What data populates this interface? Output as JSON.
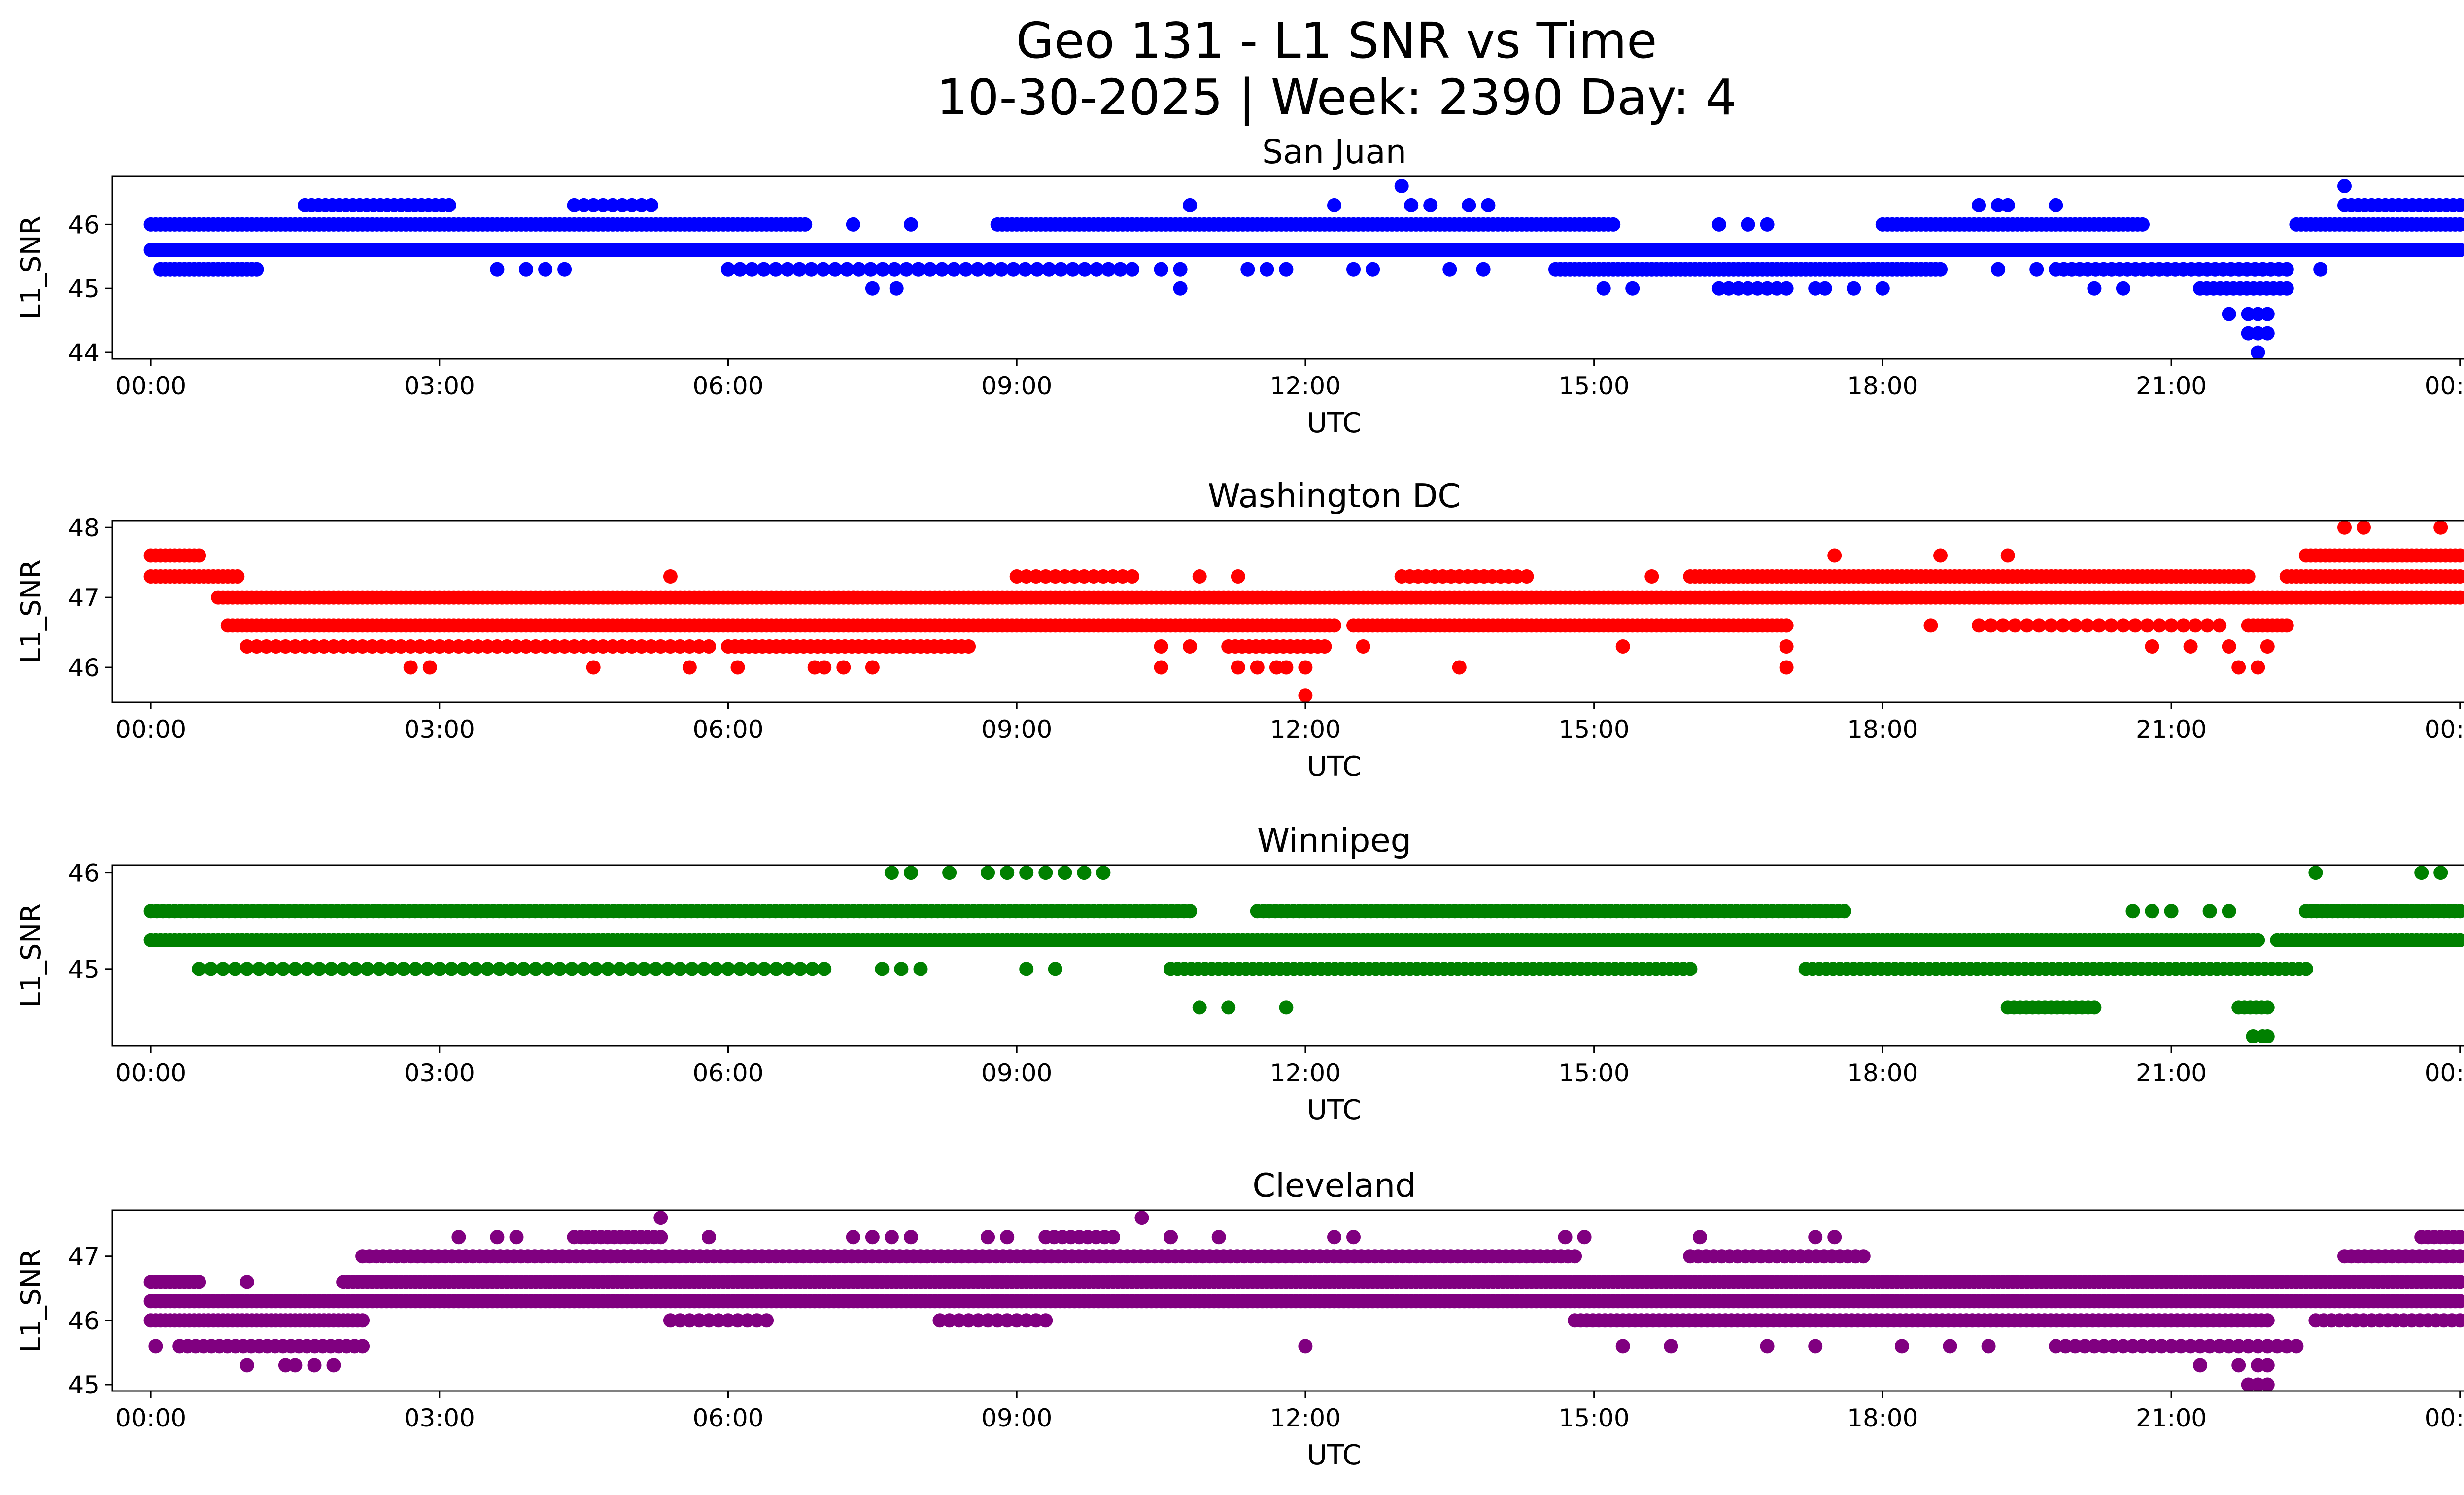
{
  "figure": {
    "title_line1": "Geo 131 - L1 SNR vs Time",
    "title_line2": "10-30-2025 | Week: 2390 Day: 4"
  },
  "chart_data": [
    {
      "type": "scatter",
      "title": "San Juan",
      "xlabel": "UTC",
      "ylabel": "L1_SNR",
      "color": "#0000ff",
      "xlim": [
        -0.4,
        25.0
      ],
      "ylim": [
        43.9,
        46.75
      ],
      "xticks": [
        0,
        3,
        6,
        9,
        12,
        15,
        18,
        21,
        24
      ],
      "xtick_labels": [
        "00:00",
        "03:00",
        "06:00",
        "09:00",
        "12:00",
        "15:00",
        "18:00",
        "21:00",
        "00:00"
      ],
      "yticks": [
        44,
        45,
        46
      ],
      "ytick_labels": [
        "44",
        "45",
        "46"
      ],
      "bands": [
        {
          "y": 45.6,
          "start": 0,
          "end": 24,
          "density": 20
        },
        {
          "y": 46.0,
          "start": 0,
          "end": 6.8,
          "density": 20
        },
        {
          "y": 46.0,
          "start": 8.8,
          "end": 15.2,
          "density": 20
        },
        {
          "y": 46.0,
          "start": 18.0,
          "end": 20.7,
          "density": 20
        },
        {
          "y": 46.0,
          "start": 22.3,
          "end": 24,
          "density": 20
        },
        {
          "y": 45.3,
          "start": 0.1,
          "end": 1.1,
          "density": 20
        },
        {
          "y": 45.3,
          "start": 6.0,
          "end": 10.2,
          "density": 8
        },
        {
          "y": 45.3,
          "start": 14.6,
          "end": 18.6,
          "density": 20
        },
        {
          "y": 45.3,
          "start": 19.8,
          "end": 22.2,
          "density": 12
        },
        {
          "y": 46.3,
          "start": 1.6,
          "end": 3.1,
          "density": 14
        },
        {
          "y": 46.3,
          "start": 4.4,
          "end": 5.2,
          "density": 10
        },
        {
          "y": 46.3,
          "start": 22.8,
          "end": 24,
          "density": 14
        },
        {
          "y": 45.0,
          "start": 16.3,
          "end": 17.0,
          "density": 10
        },
        {
          "y": 45.0,
          "start": 21.3,
          "end": 22.2,
          "density": 14
        }
      ],
      "points": [
        {
          "x": 7.3,
          "y": 46.0
        },
        {
          "x": 7.9,
          "y": 46.0
        },
        {
          "x": 7.5,
          "y": 45.0
        },
        {
          "x": 7.75,
          "y": 45.0
        },
        {
          "x": 3.6,
          "y": 45.3
        },
        {
          "x": 3.9,
          "y": 45.3
        },
        {
          "x": 4.1,
          "y": 45.3
        },
        {
          "x": 4.3,
          "y": 45.3
        },
        {
          "x": 10.8,
          "y": 46.3
        },
        {
          "x": 10.5,
          "y": 45.3
        },
        {
          "x": 10.7,
          "y": 45.3
        },
        {
          "x": 10.7,
          "y": 45.0
        },
        {
          "x": 11.4,
          "y": 45.3
        },
        {
          "x": 11.6,
          "y": 45.3
        },
        {
          "x": 11.8,
          "y": 45.3
        },
        {
          "x": 12.3,
          "y": 46.3
        },
        {
          "x": 12.5,
          "y": 45.3
        },
        {
          "x": 12.7,
          "y": 45.3
        },
        {
          "x": 13.0,
          "y": 46.6
        },
        {
          "x": 13.1,
          "y": 46.3
        },
        {
          "x": 13.3,
          "y": 46.3
        },
        {
          "x": 13.5,
          "y": 45.3
        },
        {
          "x": 13.7,
          "y": 46.3
        },
        {
          "x": 13.9,
          "y": 46.3
        },
        {
          "x": 13.85,
          "y": 45.3
        },
        {
          "x": 15.1,
          "y": 45.0
        },
        {
          "x": 15.4,
          "y": 45.0
        },
        {
          "x": 16.3,
          "y": 46.0
        },
        {
          "x": 16.6,
          "y": 46.0
        },
        {
          "x": 16.8,
          "y": 46.0
        },
        {
          "x": 17.3,
          "y": 45.0
        },
        {
          "x": 17.4,
          "y": 45.0
        },
        {
          "x": 17.7,
          "y": 45.0
        },
        {
          "x": 18.0,
          "y": 45.0
        },
        {
          "x": 19.0,
          "y": 46.3
        },
        {
          "x": 19.2,
          "y": 46.3
        },
        {
          "x": 19.3,
          "y": 46.3
        },
        {
          "x": 19.8,
          "y": 46.3
        },
        {
          "x": 19.2,
          "y": 45.3
        },
        {
          "x": 19.6,
          "y": 45.3
        },
        {
          "x": 20.2,
          "y": 45.0
        },
        {
          "x": 20.5,
          "y": 45.0
        },
        {
          "x": 21.6,
          "y": 44.6
        },
        {
          "x": 21.8,
          "y": 44.6
        },
        {
          "x": 22.0,
          "y": 44.6
        },
        {
          "x": 21.9,
          "y": 44.6
        },
        {
          "x": 21.8,
          "y": 44.3
        },
        {
          "x": 21.9,
          "y": 44.3
        },
        {
          "x": 22.0,
          "y": 44.3
        },
        {
          "x": 21.9,
          "y": 44.0
        },
        {
          "x": 22.55,
          "y": 45.3
        },
        {
          "x": 22.8,
          "y": 46.6
        }
      ]
    },
    {
      "type": "scatter",
      "title": "Washington DC",
      "xlabel": "UTC",
      "ylabel": "L1_SNR",
      "color": "#ff0000",
      "xlim": [
        -0.4,
        25.0
      ],
      "ylim": [
        45.5,
        48.1
      ],
      "xticks": [
        0,
        3,
        6,
        9,
        12,
        15,
        18,
        21,
        24
      ],
      "xtick_labels": [
        "00:00",
        "03:00",
        "06:00",
        "09:00",
        "12:00",
        "15:00",
        "18:00",
        "21:00",
        "00:00"
      ],
      "yticks": [
        46,
        47,
        48
      ],
      "ytick_labels": [
        "46",
        "47",
        "48"
      ],
      "bands": [
        {
          "y": 47.6,
          "start": 0,
          "end": 0.5,
          "density": 20
        },
        {
          "y": 47.3,
          "start": 0,
          "end": 0.9,
          "density": 20
        },
        {
          "y": 47.0,
          "start": 0.7,
          "end": 24,
          "density": 20
        },
        {
          "y": 46.6,
          "start": 0.8,
          "end": 12.3,
          "density": 20
        },
        {
          "y": 46.6,
          "start": 12.5,
          "end": 17.0,
          "density": 20
        },
        {
          "y": 46.6,
          "start": 21.8,
          "end": 22.2,
          "density": 20
        },
        {
          "y": 46.3,
          "start": 1.0,
          "end": 5.8,
          "density": 10
        },
        {
          "y": 46.3,
          "start": 6.0,
          "end": 8.5,
          "density": 14
        },
        {
          "y": 47.3,
          "start": 9.0,
          "end": 10.2,
          "density": 10
        },
        {
          "y": 47.3,
          "start": 13.0,
          "end": 14.2,
          "density": 12
        },
        {
          "y": 47.3,
          "start": 16.0,
          "end": 21.8,
          "density": 20
        },
        {
          "y": 47.3,
          "start": 22.2,
          "end": 24,
          "density": 20
        },
        {
          "y": 47.6,
          "start": 22.4,
          "end": 24,
          "density": 20
        },
        {
          "y": 46.6,
          "start": 19.0,
          "end": 21.5,
          "density": 8
        },
        {
          "y": 46.3,
          "start": 11.2,
          "end": 12.2,
          "density": 14
        }
      ],
      "points": [
        {
          "x": 2.7,
          "y": 46.0
        },
        {
          "x": 2.9,
          "y": 46.0
        },
        {
          "x": 4.6,
          "y": 46.0
        },
        {
          "x": 5.6,
          "y": 46.0
        },
        {
          "x": 6.1,
          "y": 46.0
        },
        {
          "x": 5.4,
          "y": 47.3
        },
        {
          "x": 7.3,
          "y": 47.0
        },
        {
          "x": 6.9,
          "y": 46.0
        },
        {
          "x": 7.0,
          "y": 46.0
        },
        {
          "x": 7.2,
          "y": 46.0
        },
        {
          "x": 7.5,
          "y": 46.0
        },
        {
          "x": 10.5,
          "y": 46.3
        },
        {
          "x": 10.5,
          "y": 46.0
        },
        {
          "x": 10.8,
          "y": 46.3
        },
        {
          "x": 10.9,
          "y": 47.3
        },
        {
          "x": 11.3,
          "y": 47.3
        },
        {
          "x": 11.3,
          "y": 46.0
        },
        {
          "x": 11.5,
          "y": 46.0
        },
        {
          "x": 11.7,
          "y": 46.0
        },
        {
          "x": 11.8,
          "y": 46.0
        },
        {
          "x": 12.0,
          "y": 46.0
        },
        {
          "x": 12.0,
          "y": 45.6
        },
        {
          "x": 11.8,
          "y": 47.0
        },
        {
          "x": 12.6,
          "y": 46.3
        },
        {
          "x": 13.6,
          "y": 46.0
        },
        {
          "x": 14.3,
          "y": 47.3
        },
        {
          "x": 15.3,
          "y": 46.3
        },
        {
          "x": 15.6,
          "y": 47.3
        },
        {
          "x": 17.0,
          "y": 46.6
        },
        {
          "x": 17.0,
          "y": 46.3
        },
        {
          "x": 17.0,
          "y": 46.0
        },
        {
          "x": 17.5,
          "y": 47.6
        },
        {
          "x": 18.6,
          "y": 47.6
        },
        {
          "x": 19.3,
          "y": 47.6
        },
        {
          "x": 18.5,
          "y": 46.6
        },
        {
          "x": 20.8,
          "y": 46.3
        },
        {
          "x": 21.2,
          "y": 46.3
        },
        {
          "x": 21.6,
          "y": 46.3
        },
        {
          "x": 21.7,
          "y": 46.0
        },
        {
          "x": 21.9,
          "y": 46.0
        },
        {
          "x": 22.0,
          "y": 46.3
        },
        {
          "x": 22.4,
          "y": 47.0
        },
        {
          "x": 23.0,
          "y": 47.0
        },
        {
          "x": 22.8,
          "y": 48.0
        },
        {
          "x": 23.0,
          "y": 48.0
        },
        {
          "x": 23.8,
          "y": 48.0
        }
      ]
    },
    {
      "type": "scatter",
      "title": "Winnipeg",
      "xlabel": "UTC",
      "ylabel": "L1_SNR",
      "color": "#008000",
      "xlim": [
        -0.4,
        25.0
      ],
      "ylim": [
        44.2,
        46.08
      ],
      "xticks": [
        0,
        3,
        6,
        9,
        12,
        15,
        18,
        21,
        24
      ],
      "xtick_labels": [
        "00:00",
        "03:00",
        "06:00",
        "09:00",
        "12:00",
        "15:00",
        "18:00",
        "21:00",
        "00:00"
      ],
      "yticks": [
        45,
        46
      ],
      "ytick_labels": [
        "45",
        "46"
      ],
      "bands": [
        {
          "y": 45.3,
          "start": 0,
          "end": 21.9,
          "density": 20
        },
        {
          "y": 45.3,
          "start": 22.1,
          "end": 24,
          "density": 20
        },
        {
          "y": 45.6,
          "start": 0,
          "end": 10.8,
          "density": 16
        },
        {
          "y": 45.6,
          "start": 11.5,
          "end": 17.6,
          "density": 16
        },
        {
          "y": 45.6,
          "start": 22.4,
          "end": 24,
          "density": 18
        },
        {
          "y": 45.0,
          "start": 0.5,
          "end": 7.0,
          "density": 8
        },
        {
          "y": 45.0,
          "start": 10.6,
          "end": 16.0,
          "density": 14
        },
        {
          "y": 45.0,
          "start": 17.2,
          "end": 22.4,
          "density": 14
        },
        {
          "y": 44.6,
          "start": 19.3,
          "end": 20.2,
          "density": 16
        },
        {
          "y": 44.6,
          "start": 21.7,
          "end": 22.0,
          "density": 16
        }
      ],
      "points": [
        {
          "x": 7.7,
          "y": 46.0
        },
        {
          "x": 7.9,
          "y": 46.0
        },
        {
          "x": 8.3,
          "y": 46.0
        },
        {
          "x": 8.7,
          "y": 46.0
        },
        {
          "x": 8.9,
          "y": 46.0
        },
        {
          "x": 9.1,
          "y": 46.0
        },
        {
          "x": 9.3,
          "y": 46.0
        },
        {
          "x": 9.5,
          "y": 46.0
        },
        {
          "x": 9.7,
          "y": 46.0
        },
        {
          "x": 9.9,
          "y": 46.0
        },
        {
          "x": 7.6,
          "y": 45.0
        },
        {
          "x": 7.8,
          "y": 45.0
        },
        {
          "x": 8.0,
          "y": 45.0
        },
        {
          "x": 9.1,
          "y": 45.0
        },
        {
          "x": 9.4,
          "y": 45.0
        },
        {
          "x": 10.9,
          "y": 44.6
        },
        {
          "x": 11.2,
          "y": 44.6
        },
        {
          "x": 11.8,
          "y": 44.6
        },
        {
          "x": 20.6,
          "y": 45.6
        },
        {
          "x": 20.8,
          "y": 45.6
        },
        {
          "x": 21.0,
          "y": 45.6
        },
        {
          "x": 21.4,
          "y": 45.6
        },
        {
          "x": 21.6,
          "y": 45.6
        },
        {
          "x": 21.85,
          "y": 44.3
        },
        {
          "x": 21.95,
          "y": 44.3
        },
        {
          "x": 22.0,
          "y": 44.3
        },
        {
          "x": 22.5,
          "y": 46.0
        },
        {
          "x": 23.6,
          "y": 46.0
        },
        {
          "x": 23.8,
          "y": 46.0
        }
      ]
    },
    {
      "type": "scatter",
      "title": "Cleveland",
      "xlabel": "UTC",
      "ylabel": "L1_SNR",
      "color": "#800080",
      "xlim": [
        -0.4,
        25.0
      ],
      "ylim": [
        44.9,
        47.72
      ],
      "xticks": [
        0,
        3,
        6,
        9,
        12,
        15,
        18,
        21,
        24
      ],
      "xtick_labels": [
        "00:00",
        "03:00",
        "06:00",
        "09:00",
        "12:00",
        "15:00",
        "18:00",
        "21:00",
        "00:00"
      ],
      "yticks": [
        45,
        46,
        47
      ],
      "ytick_labels": [
        "45",
        "46",
        "47"
      ],
      "bands": [
        {
          "y": 46.3,
          "start": 0,
          "end": 24,
          "density": 20
        },
        {
          "y": 46.6,
          "start": 2.0,
          "end": 24,
          "density": 20
        },
        {
          "y": 46.6,
          "start": 0,
          "end": 0.5,
          "density": 20
        },
        {
          "y": 46.0,
          "start": 0,
          "end": 2.2,
          "density": 20
        },
        {
          "y": 46.0,
          "start": 14.8,
          "end": 22.0,
          "density": 16
        },
        {
          "y": 46.0,
          "start": 22.5,
          "end": 24,
          "density": 12
        },
        {
          "y": 47.0,
          "start": 2.2,
          "end": 14.8,
          "density": 14
        },
        {
          "y": 47.0,
          "start": 16.0,
          "end": 17.8,
          "density": 12
        },
        {
          "y": 47.0,
          "start": 22.8,
          "end": 24,
          "density": 14
        },
        {
          "y": 47.3,
          "start": 4.4,
          "end": 5.3,
          "density": 14
        },
        {
          "y": 47.3,
          "start": 9.3,
          "end": 10.0,
          "density": 12
        },
        {
          "y": 47.3,
          "start": 23.6,
          "end": 24,
          "density": 14
        },
        {
          "y": 45.6,
          "start": 0.3,
          "end": 2.2,
          "density": 12
        },
        {
          "y": 45.6,
          "start": 19.8,
          "end": 22.3,
          "density": 10
        },
        {
          "y": 46.0,
          "start": 5.4,
          "end": 6.4,
          "density": 10
        },
        {
          "y": 46.0,
          "start": 8.2,
          "end": 9.3,
          "density": 10
        }
      ],
      "points": [
        {
          "x": 0.05,
          "y": 45.6
        },
        {
          "x": 1.0,
          "y": 46.6
        },
        {
          "x": 1.0,
          "y": 45.3
        },
        {
          "x": 1.4,
          "y": 45.3
        },
        {
          "x": 1.5,
          "y": 45.3
        },
        {
          "x": 1.7,
          "y": 45.3
        },
        {
          "x": 1.9,
          "y": 45.3
        },
        {
          "x": 3.2,
          "y": 47.3
        },
        {
          "x": 3.6,
          "y": 47.3
        },
        {
          "x": 3.8,
          "y": 47.3
        },
        {
          "x": 5.3,
          "y": 47.6
        },
        {
          "x": 5.8,
          "y": 47.3
        },
        {
          "x": 7.3,
          "y": 47.3
        },
        {
          "x": 7.5,
          "y": 47.3
        },
        {
          "x": 7.7,
          "y": 47.3
        },
        {
          "x": 7.9,
          "y": 47.3
        },
        {
          "x": 8.7,
          "y": 47.3
        },
        {
          "x": 8.9,
          "y": 47.3
        },
        {
          "x": 10.3,
          "y": 47.6
        },
        {
          "x": 10.6,
          "y": 47.3
        },
        {
          "x": 11.1,
          "y": 47.3
        },
        {
          "x": 12.3,
          "y": 47.3
        },
        {
          "x": 12.5,
          "y": 47.3
        },
        {
          "x": 12.0,
          "y": 45.6
        },
        {
          "x": 14.7,
          "y": 47.3
        },
        {
          "x": 14.9,
          "y": 47.3
        },
        {
          "x": 15.3,
          "y": 45.6
        },
        {
          "x": 15.8,
          "y": 45.6
        },
        {
          "x": 16.1,
          "y": 47.3
        },
        {
          "x": 17.3,
          "y": 47.3
        },
        {
          "x": 17.5,
          "y": 47.3
        },
        {
          "x": 16.8,
          "y": 45.6
        },
        {
          "x": 17.3,
          "y": 45.6
        },
        {
          "x": 18.2,
          "y": 45.6
        },
        {
          "x": 18.7,
          "y": 45.6
        },
        {
          "x": 19.1,
          "y": 45.6
        },
        {
          "x": 21.3,
          "y": 45.3
        },
        {
          "x": 21.7,
          "y": 45.3
        },
        {
          "x": 21.9,
          "y": 45.3
        },
        {
          "x": 22.0,
          "y": 45.3
        },
        {
          "x": 21.8,
          "y": 45.0
        },
        {
          "x": 21.9,
          "y": 45.0
        },
        {
          "x": 22.0,
          "y": 45.0
        },
        {
          "x": 22.1,
          "y": 46.6
        },
        {
          "x": 22.3,
          "y": 46.6
        }
      ]
    }
  ]
}
